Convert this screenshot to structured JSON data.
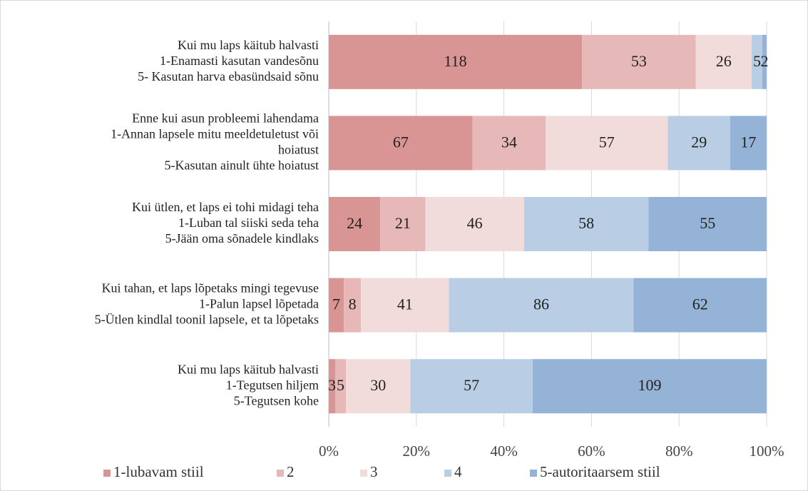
{
  "chart_data": {
    "type": "bar",
    "orientation": "horizontal",
    "stacking": "percent",
    "categories": [
      [
        "Kui mu laps käitub halvasti",
        "1-Enamasti kasutan vandesõnu",
        "5- Kasutan harva ebasündsaid sõnu"
      ],
      [
        "Enne kui asun probleemi lahendama",
        "1-Annan lapsele mitu meeldetuletust või",
        "hoiatust",
        "5-Kasutan ainult ühte hoiatust"
      ],
      [
        "Kui ütlen, et laps ei tohi midagi teha",
        "1-Luban tal siiski seda teha",
        "5-Jään oma sõnadele kindlaks"
      ],
      [
        "Kui tahan, et laps lõpetaks mingi tegevuse",
        "1-Palun lapsel lõpetada",
        "5-Ütlen kindlal toonil lapsele, et ta lõpetaks"
      ],
      [
        "Kui mu laps käitub halvasti",
        "1-Tegutsen hiljem",
        "5-Tegutsen kohe"
      ]
    ],
    "series": [
      {
        "name": "1-lubavam stiil",
        "color": "#d99594",
        "values": [
          118,
          67,
          24,
          7,
          3
        ]
      },
      {
        "name": "2",
        "color": "#e6b8b7",
        "values": [
          53,
          34,
          21,
          8,
          5
        ]
      },
      {
        "name": "3",
        "color": "#f2dcdb",
        "values": [
          26,
          57,
          46,
          41,
          30
        ]
      },
      {
        "name": "4",
        "color": "#b9cde5",
        "values": [
          5,
          29,
          58,
          86,
          57
        ]
      },
      {
        "name": "5-autoritaarsem stiil",
        "color": "#95b3d7",
        "values": [
          2,
          17,
          55,
          62,
          109
        ]
      }
    ],
    "xlim": [
      0,
      100
    ],
    "xticks": [
      {
        "value": 0,
        "label": "0%"
      },
      {
        "value": 20,
        "label": "20%"
      },
      {
        "value": 40,
        "label": "40%"
      },
      {
        "value": 60,
        "label": "60%"
      },
      {
        "value": 80,
        "label": "80%"
      },
      {
        "value": 100,
        "label": "100%"
      }
    ],
    "grid": true,
    "legend": "bottom"
  }
}
